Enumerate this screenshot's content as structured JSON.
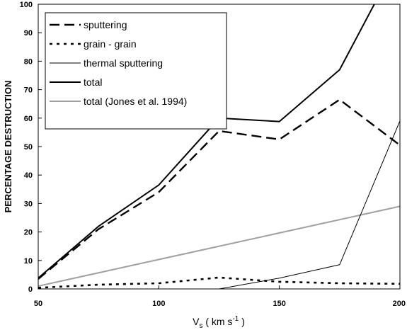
{
  "chart_data": {
    "type": "line",
    "title": "",
    "xlabel": {
      "main": "V",
      "sub": "s",
      "pre_sup": " ( km s",
      "sup": "-1",
      "post_sup": " )"
    },
    "ylabel": "PERCENTAGE DESTRUCTION",
    "xlim": [
      50,
      200
    ],
    "ylim": [
      0,
      100
    ],
    "xticks": [
      "50",
      "100",
      "150",
      "200"
    ],
    "yticks": [
      "0",
      "10",
      "20",
      "30",
      "40",
      "50",
      "60",
      "70",
      "80",
      "90",
      "100"
    ],
    "legend_position": "top-left",
    "series": [
      {
        "name": "sputtering",
        "style": "dashed",
        "color": "#000000",
        "x": [
          50,
          75,
          100,
          125,
          150,
          175,
          200
        ],
        "y": [
          3.5,
          21,
          34,
          55.5,
          52.5,
          66.5,
          50.5
        ]
      },
      {
        "name": "grain - grain",
        "style": "dotted",
        "color": "#000000",
        "x": [
          50,
          75,
          100,
          125,
          150,
          175,
          200
        ],
        "y": [
          0.4,
          1.5,
          2,
          4,
          2.5,
          2,
          1.8
        ]
      },
      {
        "name": "thermal sputtering",
        "style": "thin",
        "color": "#000000",
        "x": [
          125,
          150,
          175,
          200
        ],
        "y": [
          0,
          3.8,
          8.5,
          59
        ]
      },
      {
        "name": "total",
        "style": "solid",
        "color": "#000000",
        "x": [
          50,
          75,
          100,
          125,
          150,
          175,
          200
        ],
        "y": [
          3.8,
          22,
          36.5,
          60,
          58.8,
          77,
          117
        ]
      },
      {
        "name": "total (Jones et al. 1994)",
        "style": "solid",
        "color": "#a0a0a0",
        "x": [
          50,
          200
        ],
        "y": [
          1,
          29
        ]
      }
    ]
  }
}
